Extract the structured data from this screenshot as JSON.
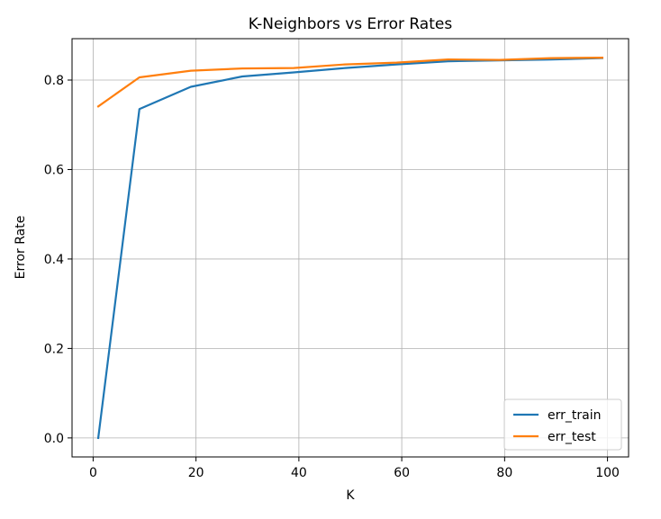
{
  "chart_data": {
    "type": "line",
    "title": "K-Neighbors vs Error Rates",
    "xlabel": "K",
    "ylabel": "Error Rate",
    "xlim": [
      -4.1,
      104.1
    ],
    "ylim": [
      -0.0425,
      0.8925
    ],
    "xticks": [
      0,
      20,
      40,
      60,
      80,
      100
    ],
    "xtick_labels": [
      "0",
      "20",
      "40",
      "60",
      "80",
      "100"
    ],
    "yticks": [
      0.0,
      0.2,
      0.4,
      0.6,
      0.8
    ],
    "ytick_labels": [
      "0.0",
      "0.2",
      "0.4",
      "0.6",
      "0.8"
    ],
    "grid": true,
    "legend_position": "lower-right",
    "x": [
      1,
      9,
      19,
      29,
      39,
      49,
      59,
      69,
      79,
      89,
      99
    ],
    "series": [
      {
        "name": "err_train",
        "color": "#1f77b4",
        "values": [
          0.0,
          0.735,
          0.785,
          0.808,
          0.817,
          0.827,
          0.835,
          0.842,
          0.844,
          0.846,
          0.849
        ]
      },
      {
        "name": "err_test",
        "color": "#ff7f0e",
        "values": [
          0.741,
          0.806,
          0.821,
          0.826,
          0.827,
          0.835,
          0.839,
          0.846,
          0.845,
          0.849,
          0.85
        ]
      }
    ]
  }
}
